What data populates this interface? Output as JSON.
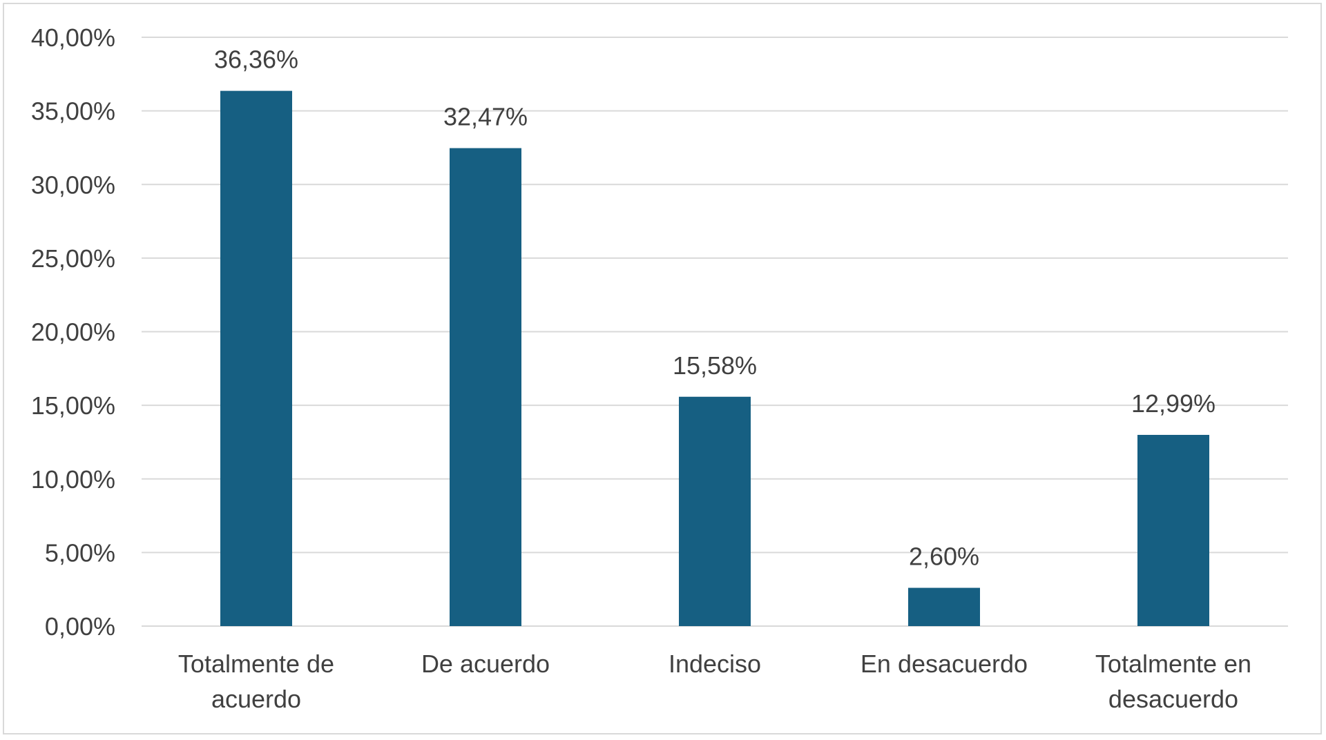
{
  "chart_data": {
    "type": "bar",
    "categories": [
      [
        "Totalmente de",
        "acuerdo"
      ],
      [
        "De acuerdo"
      ],
      [
        "Indeciso"
      ],
      [
        "En desacuerdo"
      ],
      [
        "Totalmente en",
        "desacuerdo"
      ]
    ],
    "values": [
      36.36,
      32.47,
      15.58,
      2.6,
      12.99
    ],
    "data_labels": [
      "36,36%",
      "32,47%",
      "15,58%",
      "2,60%",
      "12,99%"
    ],
    "y_ticks": [
      0,
      5,
      10,
      15,
      20,
      25,
      30,
      35,
      40
    ],
    "y_tick_labels": [
      "0,00%",
      "5,00%",
      "10,00%",
      "15,00%",
      "20,00%",
      "25,00%",
      "30,00%",
      "35,00%",
      "40,00%"
    ],
    "ylim": [
      0,
      40
    ],
    "grid": true,
    "legend": "none",
    "bar_color": "#165f82",
    "grid_color": "#d9d9d9"
  }
}
